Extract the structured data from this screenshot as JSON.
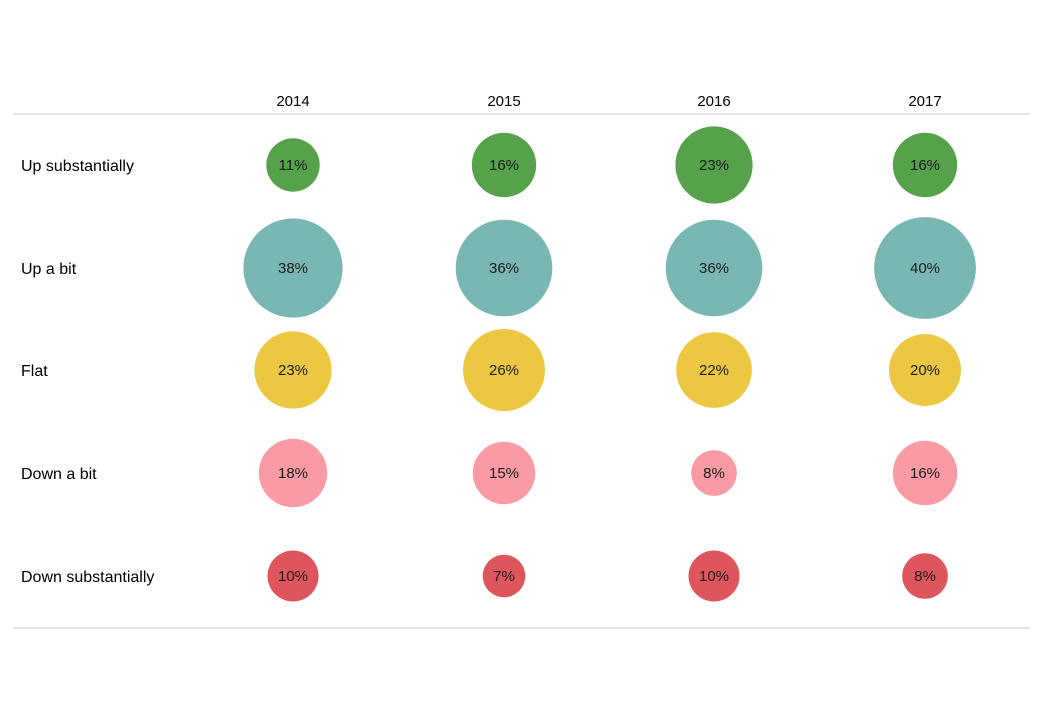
{
  "chart_data": {
    "type": "bubble-grid",
    "title": "",
    "columns": [
      "2014",
      "2015",
      "2016",
      "2017"
    ],
    "rows": [
      {
        "label": "Up substantially",
        "color": "#56a24a",
        "values": [
          11,
          16,
          23,
          16
        ]
      },
      {
        "label": "Up a bit",
        "color": "#78b7b2",
        "values": [
          38,
          36,
          36,
          40
        ]
      },
      {
        "label": "Flat",
        "color": "#ecc842",
        "values": [
          23,
          26,
          22,
          20
        ]
      },
      {
        "label": "Down a bit",
        "color": "#f99aa5",
        "values": [
          18,
          15,
          8,
          16
        ]
      },
      {
        "label": "Down substantially",
        "color": "#df555c",
        "values": [
          10,
          7,
          10,
          8
        ]
      }
    ],
    "value_suffix": "%"
  }
}
